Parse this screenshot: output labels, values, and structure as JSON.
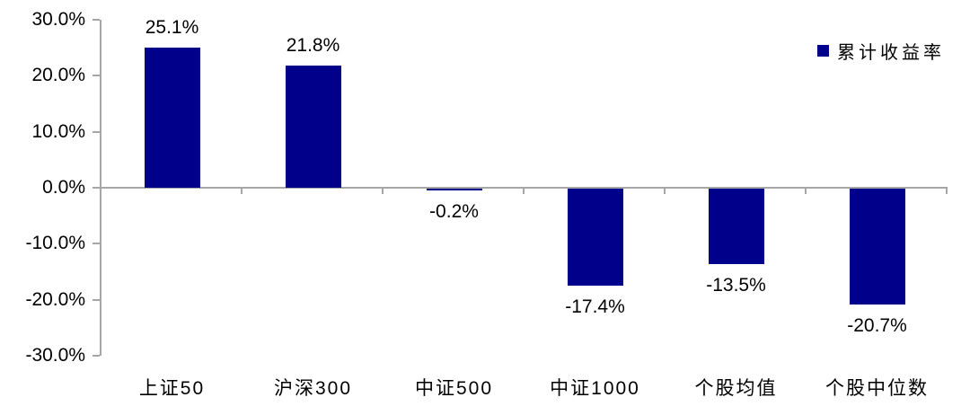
{
  "chart_data": {
    "type": "bar",
    "categories": [
      "上证50",
      "沪深300",
      "中证500",
      "中证1000",
      "个股均值",
      "个股中位数"
    ],
    "values": [
      25.1,
      21.8,
      -0.2,
      -17.4,
      -13.5,
      -20.7
    ],
    "value_labels": [
      "25.1%",
      "21.8%",
      "-0.2%",
      "-17.4%",
      "-13.5%",
      "-20.7%"
    ],
    "series_name": "累计收益率",
    "title": "",
    "xlabel": "",
    "ylabel": "",
    "ylim": [
      -30,
      30
    ],
    "ytick_step": 10,
    "ytick_labels": [
      "30.0%",
      "20.0%",
      "10.0%",
      "0.0%",
      "-10.0%",
      "-20.0%",
      "-30.0%"
    ],
    "grid": false,
    "legend_position": "top-right",
    "bar_color": "#00008b",
    "axis_color": "#a6a6a6",
    "text_color": "#000000",
    "background_color": "#ffffff"
  }
}
